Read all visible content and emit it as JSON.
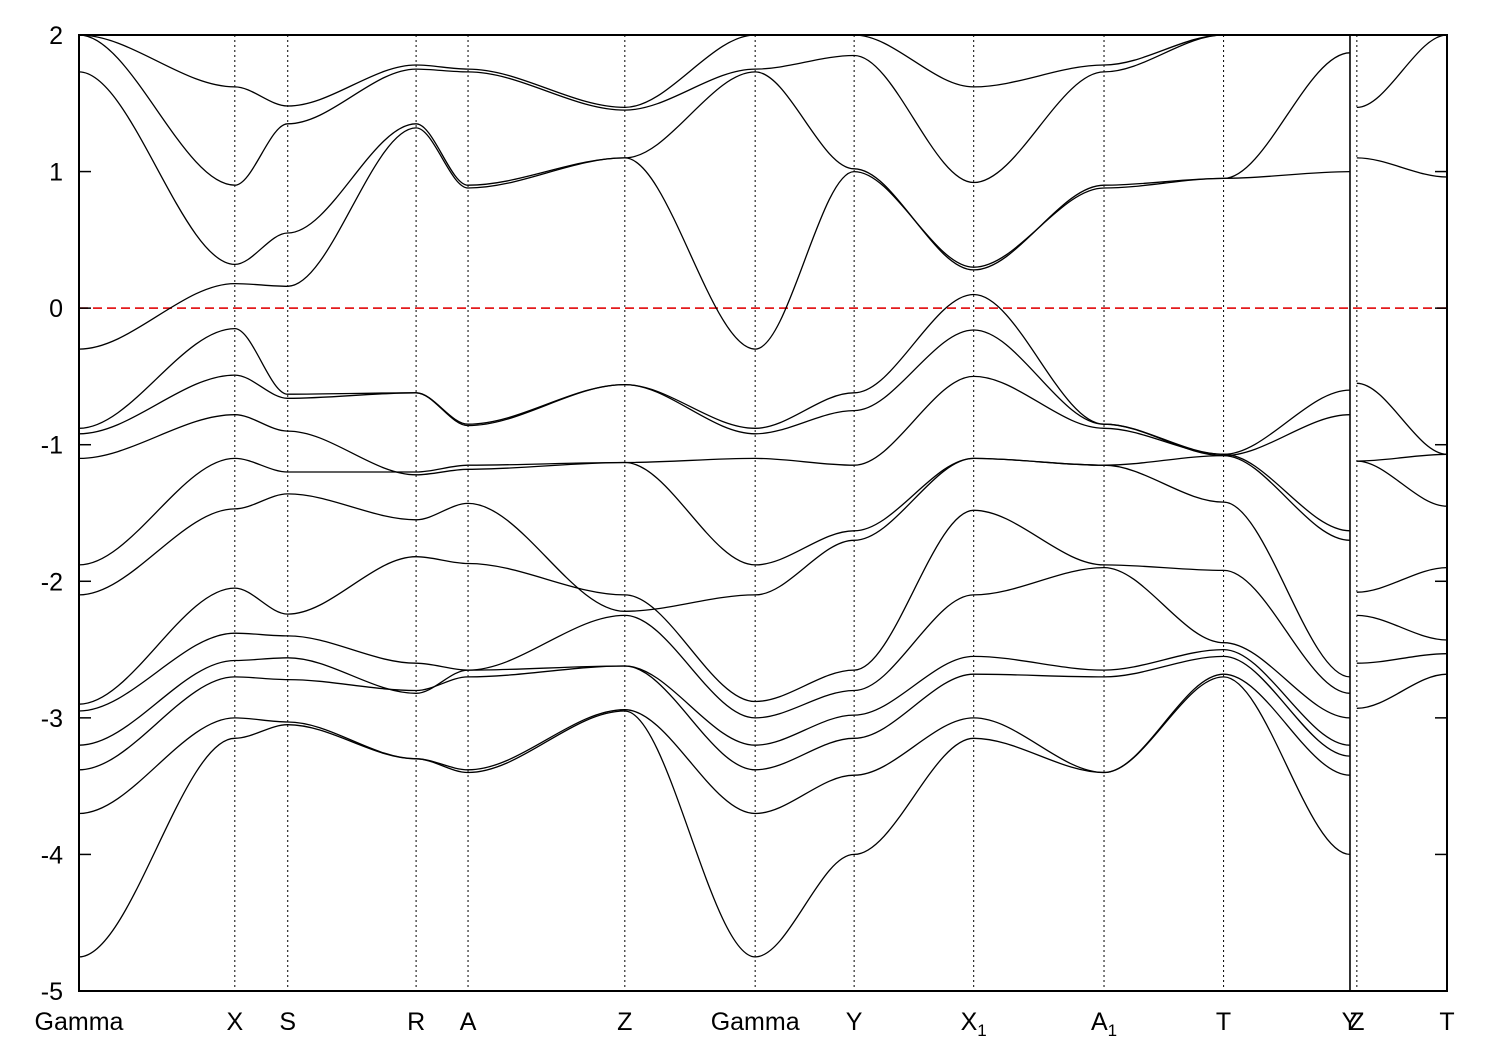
{
  "chart_data": {
    "type": "line",
    "title": "",
    "xlabel": "",
    "ylabel": "",
    "ylim": [
      -5,
      2
    ],
    "yticks": [
      -5,
      -4,
      -3,
      -2,
      -1,
      0,
      1,
      2
    ],
    "ytick_labels": [
      "-5",
      "-4",
      "-3",
      "-2",
      "-1",
      "0",
      "1",
      "2"
    ],
    "xlim": [
      0,
      13.96
    ],
    "kpoints": [
      {
        "label": "Gamma",
        "sub": "",
        "x": 0.0
      },
      {
        "label": "X",
        "sub": "",
        "x": 1.59
      },
      {
        "label": "S",
        "sub": "",
        "x": 2.13
      },
      {
        "label": "R",
        "sub": "",
        "x": 3.44
      },
      {
        "label": "A",
        "sub": "",
        "x": 3.97
      },
      {
        "label": "Z",
        "sub": "",
        "x": 5.57
      },
      {
        "label": "Gamma",
        "sub": "",
        "x": 6.9
      },
      {
        "label": "Y",
        "sub": "",
        "x": 7.91
      },
      {
        "label": "X",
        "sub": "1",
        "x": 9.13
      },
      {
        "label": "A",
        "sub": "1",
        "x": 10.46
      },
      {
        "label": "T",
        "sub": "",
        "x": 11.68
      },
      {
        "label": "Y",
        "sub": "",
        "x": 12.97
      },
      {
        "label": "Z",
        "sub": "",
        "x": 13.04
      },
      {
        "label": "T",
        "sub": "",
        "x": 13.96
      }
    ],
    "discontinuity_x": 12.97,
    "fermi_level": {
      "y": 0,
      "color": "#e41a1c",
      "style": "dashed"
    },
    "band_color": "#000000",
    "grid": "vertical dotted lines at k-points",
    "segments": [
      {
        "x": [
          0.0,
          1.59,
          2.13,
          3.44,
          3.97,
          5.57,
          6.9,
          7.91,
          9.13,
          10.46,
          11.68,
          12.97
        ],
        "bands": [
          [
            -4.75,
            -3.15,
            -3.05,
            -3.3,
            -3.4,
            -2.95,
            -4.75,
            -4.0,
            -3.15,
            -3.4,
            -2.7,
            -4.0
          ],
          [
            -3.7,
            -3.0,
            -3.03,
            -3.3,
            -3.38,
            -2.94,
            -3.7,
            -3.42,
            -3.0,
            -3.4,
            -2.68,
            -3.42
          ],
          [
            -3.38,
            -2.7,
            -2.72,
            -2.8,
            -2.7,
            -2.62,
            -3.38,
            -3.15,
            -2.68,
            -2.7,
            -2.55,
            -3.28
          ],
          [
            -3.2,
            -2.58,
            -2.56,
            -2.82,
            -2.65,
            -2.62,
            -3.2,
            -2.98,
            -2.55,
            -2.65,
            -2.5,
            -3.2
          ],
          [
            -2.95,
            -2.38,
            -2.4,
            -2.6,
            -2.65,
            -2.25,
            -3.0,
            -2.8,
            -2.1,
            -1.9,
            -2.45,
            -3.0
          ],
          [
            -2.9,
            -2.05,
            -2.24,
            -1.82,
            -1.87,
            -2.1,
            -2.88,
            -2.65,
            -1.48,
            -1.88,
            -1.92,
            -2.82
          ],
          [
            -2.1,
            -1.47,
            -1.36,
            -1.55,
            -1.43,
            -2.22,
            -2.1,
            -1.7,
            -1.1,
            -1.15,
            -1.42,
            -2.7
          ],
          [
            -1.88,
            -1.1,
            -1.2,
            -1.2,
            -1.15,
            -1.13,
            -1.88,
            -1.63,
            -1.1,
            -1.15,
            -1.08,
            -1.7
          ],
          [
            -1.1,
            -0.78,
            -0.9,
            -1.22,
            -1.18,
            -1.13,
            -1.1,
            -1.15,
            -0.5,
            -0.88,
            -1.07,
            -1.63
          ],
          [
            -0.92,
            -0.49,
            -0.66,
            -0.62,
            -0.86,
            -0.56,
            -0.92,
            -0.75,
            -0.16,
            -0.85,
            -1.08,
            -0.78
          ],
          [
            -0.88,
            -0.15,
            -0.63,
            -0.62,
            -0.85,
            -0.56,
            -0.88,
            -0.62,
            0.1,
            -0.85,
            -1.07,
            -0.6
          ],
          [
            -0.3,
            0.18,
            0.16,
            1.32,
            0.88,
            1.1,
            -0.3,
            1.0,
            0.3,
            0.88,
            0.95,
            1.0
          ],
          [
            1.73,
            0.32,
            0.55,
            1.35,
            0.9,
            1.1,
            1.73,
            1.02,
            0.28,
            0.9,
            0.95,
            1.87
          ],
          [
            2.0,
            0.9,
            1.35,
            1.75,
            1.73,
            1.45,
            1.75,
            1.85,
            0.92,
            1.73,
            2.0,
            2.0
          ],
          [
            2.0,
            1.62,
            1.48,
            1.78,
            1.75,
            1.47,
            2.0,
            2.0,
            1.62,
            1.78,
            2.0,
            2.0
          ]
        ]
      },
      {
        "x": [
          13.04,
          13.96
        ],
        "bands": [
          [
            -2.93,
            -2.68
          ],
          [
            -2.6,
            -2.53
          ],
          [
            -2.25,
            -2.43
          ],
          [
            -2.08,
            -1.9
          ],
          [
            -1.12,
            -1.45
          ],
          [
            -1.12,
            -1.07
          ],
          [
            -0.55,
            -1.07
          ],
          [
            1.1,
            0.96
          ],
          [
            1.47,
            2.0
          ]
        ]
      }
    ]
  }
}
